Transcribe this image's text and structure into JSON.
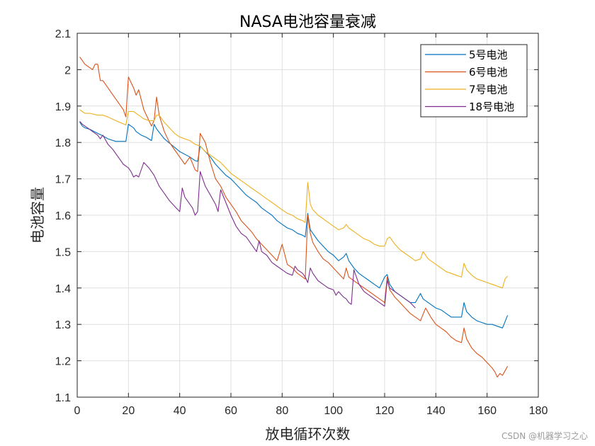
{
  "watermark": "CSDN @机器学习之心",
  "chart_data": {
    "type": "line",
    "title": "NASA电池容量衰减",
    "xlabel": "放电循环次数",
    "ylabel": "电池容量",
    "xlim": [
      0,
      180
    ],
    "ylim": [
      1.1,
      2.1
    ],
    "xticks": [
      0,
      20,
      40,
      60,
      80,
      100,
      120,
      140,
      160,
      180
    ],
    "yticks": [
      1.1,
      1.2,
      1.3,
      1.4,
      1.5,
      1.6,
      1.7,
      1.8,
      1.9,
      2,
      2.1
    ],
    "xtick_labels": [
      "0",
      "20",
      "40",
      "60",
      "80",
      "100",
      "120",
      "140",
      "160",
      "180"
    ],
    "ytick_labels": [
      "1.1",
      "1.2",
      "1.3",
      "1.4",
      "1.5",
      "1.6",
      "1.7",
      "1.8",
      "1.9",
      "2",
      "2.1"
    ],
    "grid": true,
    "legend_position": "top-right",
    "series": [
      {
        "name": "5号电池",
        "color": "#0072BD",
        "x": [
          1,
          2,
          3,
          5,
          8,
          10,
          12,
          15,
          19,
          20,
          21,
          22,
          23,
          25,
          27,
          29,
          30,
          31,
          32,
          34,
          36,
          40,
          44,
          46,
          47,
          48,
          50,
          52,
          54,
          56,
          58,
          60,
          62,
          64,
          66,
          68,
          70,
          72,
          74,
          76,
          78,
          80,
          82,
          84,
          86,
          88,
          89,
          90,
          91,
          92,
          94,
          96,
          98,
          100,
          102,
          104,
          105,
          106,
          108,
          110,
          112,
          114,
          116,
          118,
          120,
          121,
          122,
          124,
          126,
          128,
          130,
          132,
          134,
          135,
          137,
          140,
          142,
          144,
          146,
          148,
          150,
          151,
          152,
          154,
          156,
          158,
          160,
          162,
          164,
          166,
          168
        ],
        "y": [
          1.856,
          1.845,
          1.84,
          1.836,
          1.825,
          1.818,
          1.81,
          1.803,
          1.803,
          1.85,
          1.845,
          1.84,
          1.83,
          1.82,
          1.814,
          1.805,
          1.85,
          1.837,
          1.828,
          1.81,
          1.798,
          1.775,
          1.76,
          1.75,
          1.748,
          1.79,
          1.775,
          1.76,
          1.74,
          1.725,
          1.71,
          1.7,
          1.685,
          1.67,
          1.655,
          1.645,
          1.635,
          1.62,
          1.61,
          1.6,
          1.585,
          1.575,
          1.565,
          1.56,
          1.55,
          1.545,
          1.54,
          1.605,
          1.56,
          1.55,
          1.53,
          1.515,
          1.5,
          1.49,
          1.475,
          1.485,
          1.495,
          1.475,
          1.455,
          1.44,
          1.43,
          1.42,
          1.41,
          1.4,
          1.43,
          1.437,
          1.41,
          1.39,
          1.38,
          1.37,
          1.36,
          1.36,
          1.385,
          1.37,
          1.36,
          1.345,
          1.34,
          1.33,
          1.32,
          1.32,
          1.32,
          1.36,
          1.335,
          1.32,
          1.31,
          1.305,
          1.3,
          1.3,
          1.295,
          1.29,
          1.325
        ]
      },
      {
        "name": "6号电池",
        "color": "#D95319",
        "x": [
          1,
          2,
          3,
          4,
          5,
          6,
          7,
          8,
          9,
          10,
          12,
          14,
          16,
          18,
          19,
          20,
          21,
          22,
          23,
          24,
          26,
          28,
          29,
          30,
          31,
          32,
          34,
          36,
          38,
          40,
          42,
          44,
          46,
          47,
          48,
          50,
          52,
          54,
          56,
          58,
          60,
          62,
          64,
          66,
          68,
          70,
          72,
          74,
          76,
          78,
          80,
          82,
          84,
          86,
          88,
          89,
          90,
          91,
          92,
          94,
          96,
          98,
          100,
          102,
          104,
          105,
          106,
          108,
          110,
          112,
          114,
          116,
          118,
          120,
          121,
          122,
          124,
          126,
          128,
          130,
          132,
          134,
          136,
          138,
          140,
          142,
          144,
          146,
          148,
          150,
          151,
          152,
          154,
          156,
          158,
          160,
          162,
          163,
          164,
          165,
          166,
          168
        ],
        "y": [
          2.035,
          2.025,
          2.015,
          2.01,
          2.005,
          2.0,
          2.015,
          2.015,
          1.97,
          1.97,
          1.95,
          1.93,
          1.91,
          1.89,
          1.87,
          1.98,
          1.965,
          1.95,
          1.93,
          1.945,
          1.89,
          1.86,
          1.845,
          1.86,
          1.925,
          1.875,
          1.83,
          1.8,
          1.78,
          1.76,
          1.74,
          1.76,
          1.725,
          1.72,
          1.825,
          1.8,
          1.745,
          1.7,
          1.68,
          1.65,
          1.63,
          1.61,
          1.585,
          1.57,
          1.555,
          1.535,
          1.52,
          1.505,
          1.49,
          1.475,
          1.52,
          1.465,
          1.455,
          1.44,
          1.43,
          1.425,
          1.6,
          1.55,
          1.525,
          1.5,
          1.48,
          1.47,
          1.455,
          1.44,
          1.425,
          1.455,
          1.43,
          1.42,
          1.41,
          1.4,
          1.39,
          1.38,
          1.37,
          1.36,
          1.43,
          1.395,
          1.375,
          1.36,
          1.345,
          1.33,
          1.32,
          1.31,
          1.345,
          1.32,
          1.3,
          1.29,
          1.28,
          1.265,
          1.255,
          1.25,
          1.29,
          1.26,
          1.235,
          1.22,
          1.21,
          1.195,
          1.18,
          1.17,
          1.155,
          1.165,
          1.16,
          1.185
        ]
      },
      {
        "name": "7号电池",
        "color": "#EDB120",
        "x": [
          1,
          2,
          3,
          5,
          8,
          10,
          12,
          15,
          19,
          20,
          22,
          24,
          26,
          28,
          30,
          31,
          32,
          34,
          36,
          38,
          40,
          42,
          44,
          46,
          48,
          50,
          52,
          54,
          56,
          58,
          60,
          62,
          64,
          66,
          68,
          70,
          72,
          74,
          76,
          78,
          80,
          82,
          84,
          86,
          88,
          89,
          90,
          91,
          92,
          94,
          96,
          98,
          100,
          102,
          104,
          105,
          106,
          108,
          110,
          112,
          114,
          116,
          118,
          120,
          121,
          122,
          124,
          126,
          128,
          130,
          132,
          134,
          135,
          137,
          140,
          142,
          144,
          146,
          148,
          150,
          151,
          152,
          154,
          156,
          158,
          160,
          162,
          164,
          166,
          167,
          168
        ],
        "y": [
          1.89,
          1.885,
          1.88,
          1.88,
          1.875,
          1.875,
          1.87,
          1.86,
          1.848,
          1.885,
          1.885,
          1.875,
          1.865,
          1.86,
          1.86,
          1.875,
          1.875,
          1.855,
          1.84,
          1.825,
          1.815,
          1.81,
          1.805,
          1.795,
          1.79,
          1.775,
          1.765,
          1.755,
          1.745,
          1.73,
          1.715,
          1.705,
          1.695,
          1.685,
          1.675,
          1.665,
          1.655,
          1.645,
          1.635,
          1.625,
          1.615,
          1.605,
          1.6,
          1.59,
          1.585,
          1.58,
          1.69,
          1.63,
          1.615,
          1.6,
          1.59,
          1.58,
          1.57,
          1.56,
          1.565,
          1.575,
          1.565,
          1.555,
          1.545,
          1.535,
          1.53,
          1.52,
          1.515,
          1.515,
          1.535,
          1.54,
          1.52,
          1.505,
          1.495,
          1.485,
          1.475,
          1.48,
          1.5,
          1.48,
          1.465,
          1.455,
          1.445,
          1.44,
          1.435,
          1.43,
          1.468,
          1.45,
          1.435,
          1.425,
          1.42,
          1.415,
          1.41,
          1.405,
          1.4,
          1.425,
          1.433
        ]
      },
      {
        "name": "18号电池",
        "color": "#7E2F8E",
        "x": [
          1,
          2,
          4,
          6,
          8,
          9,
          10,
          12,
          14,
          16,
          18,
          20,
          21,
          22,
          23,
          24,
          26,
          28,
          30,
          31,
          32,
          34,
          36,
          38,
          40,
          41,
          42,
          44,
          45,
          46,
          47,
          48,
          50,
          52,
          54,
          55,
          56,
          58,
          60,
          62,
          64,
          66,
          68,
          70,
          71,
          72,
          74,
          76,
          78,
          80,
          82,
          84,
          85,
          86,
          88,
          89,
          90,
          91,
          92,
          94,
          96,
          98,
          100,
          101,
          102,
          104,
          105,
          106,
          107,
          108,
          110,
          112,
          114,
          116,
          118,
          120,
          121,
          122,
          124,
          126,
          128,
          130,
          132
        ],
        "y": [
          1.858,
          1.85,
          1.84,
          1.83,
          1.82,
          1.81,
          1.82,
          1.795,
          1.78,
          1.76,
          1.74,
          1.73,
          1.72,
          1.705,
          1.71,
          1.705,
          1.745,
          1.73,
          1.71,
          1.695,
          1.68,
          1.66,
          1.64,
          1.625,
          1.61,
          1.675,
          1.65,
          1.63,
          1.62,
          1.6,
          1.61,
          1.72,
          1.68,
          1.655,
          1.63,
          1.61,
          1.67,
          1.635,
          1.6,
          1.57,
          1.55,
          1.54,
          1.52,
          1.5,
          1.53,
          1.5,
          1.49,
          1.47,
          1.46,
          1.45,
          1.44,
          1.435,
          1.46,
          1.45,
          1.44,
          1.43,
          1.415,
          1.455,
          1.44,
          1.42,
          1.41,
          1.4,
          1.395,
          1.38,
          1.39,
          1.375,
          1.37,
          1.36,
          1.355,
          1.45,
          1.41,
          1.39,
          1.38,
          1.37,
          1.36,
          1.35,
          1.42,
          1.4,
          1.39,
          1.38,
          1.37,
          1.36,
          1.345
        ]
      }
    ]
  }
}
